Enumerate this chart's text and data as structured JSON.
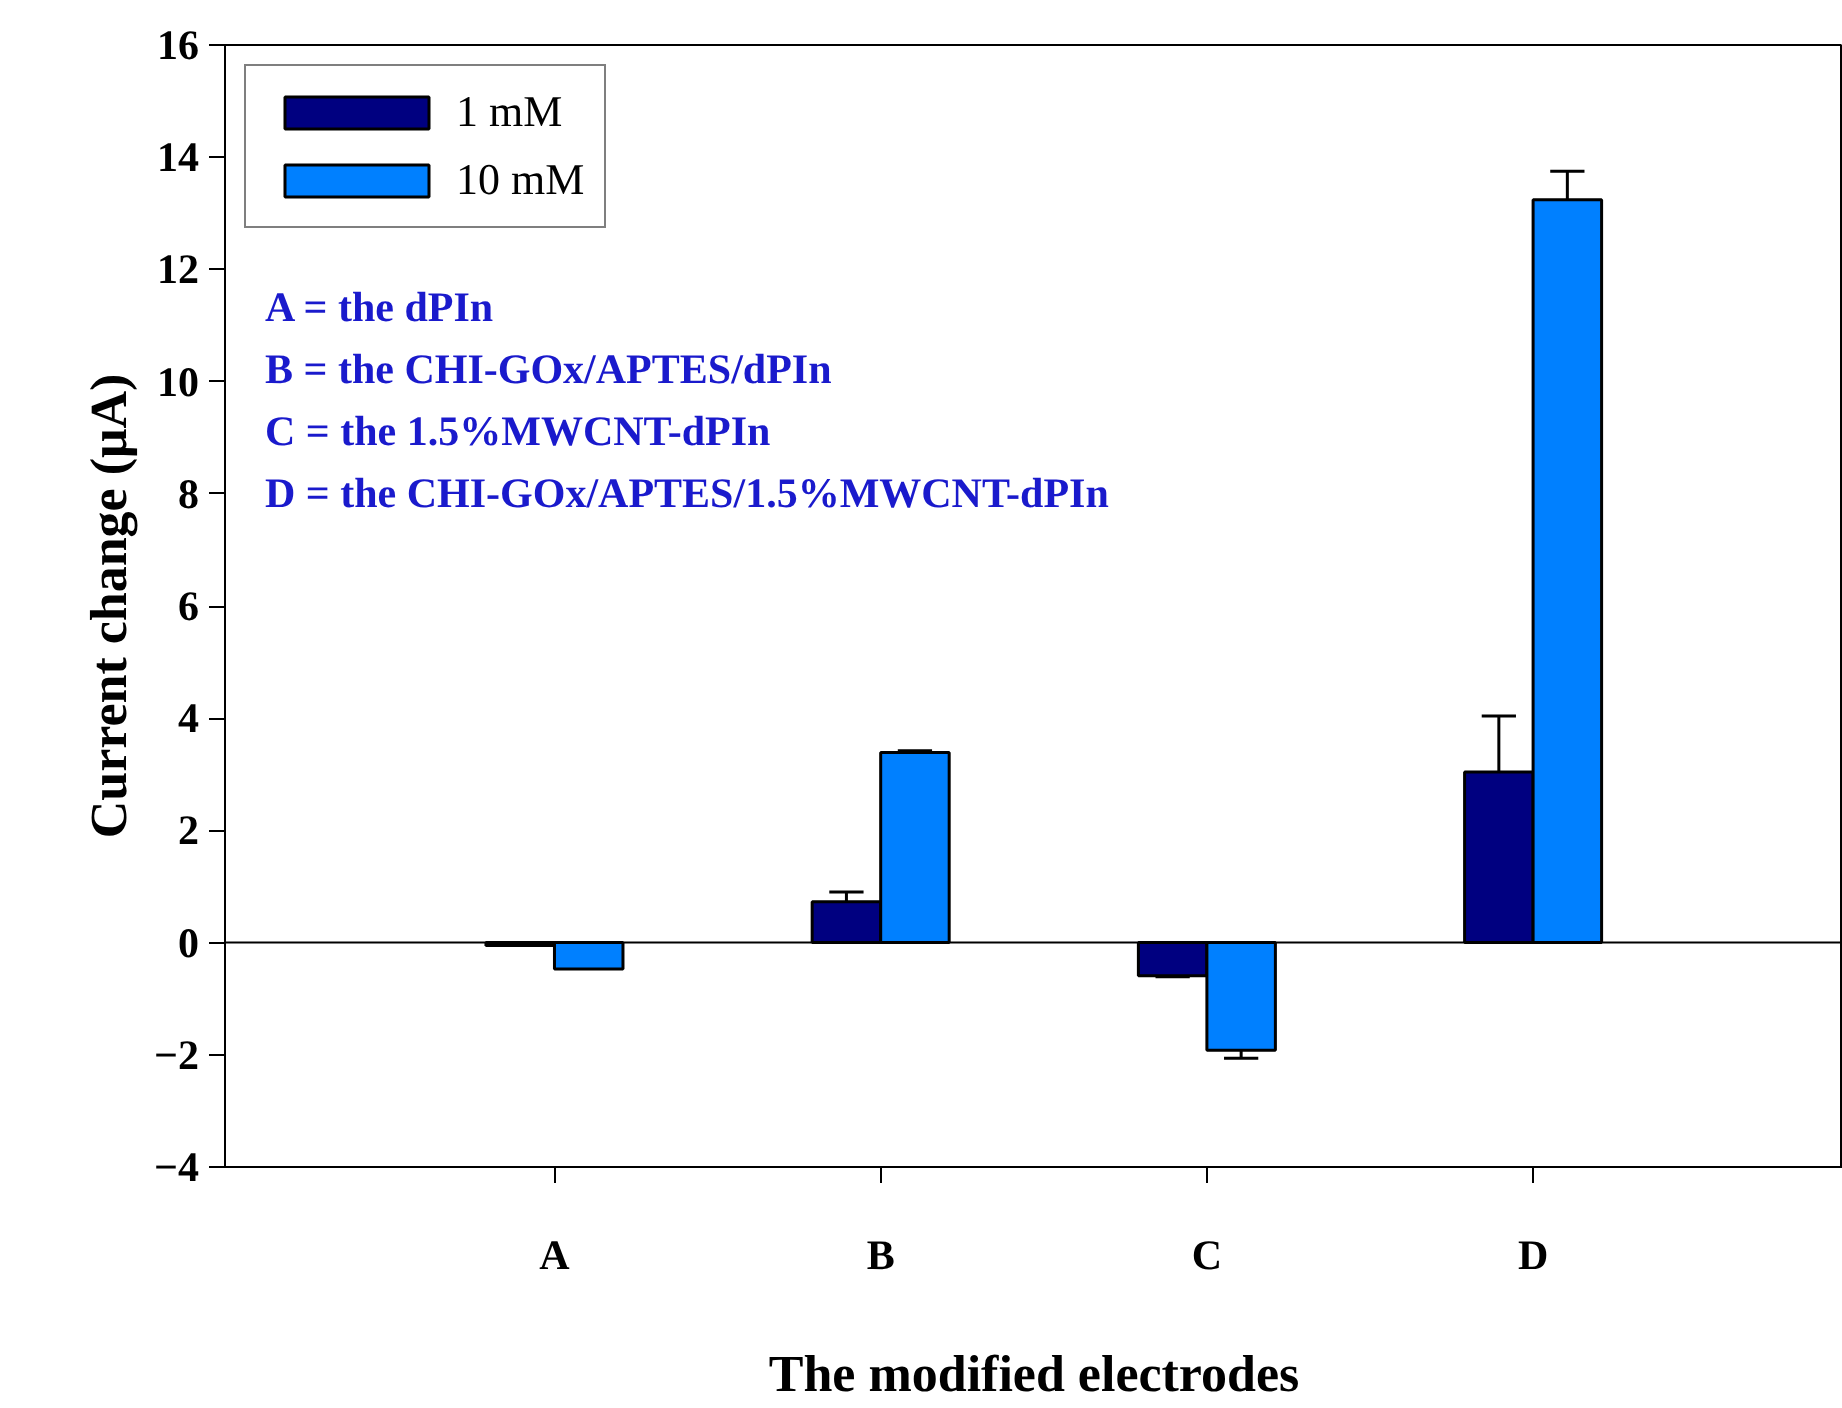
{
  "chart_data": {
    "type": "bar",
    "xlabel": "The modified electrodes",
    "ylabel": "Current change (μA)",
    "categories": [
      "A",
      "B",
      "C",
      "D"
    ],
    "series": [
      {
        "name": "1 mM",
        "color": "#000080",
        "values": [
          -0.05,
          0.73,
          -0.59,
          3.04
        ],
        "errors": [
          null,
          [
            0.73,
            0.9
          ],
          [
            -0.61,
            -0.59
          ],
          [
            3.04,
            4.04
          ]
        ]
      },
      {
        "name": "10 mM",
        "color": "#0080ff",
        "values": [
          -0.47,
          3.39,
          -1.92,
          13.24
        ],
        "errors": [
          null,
          [
            3.39,
            3.42
          ],
          [
            -2.06,
            -1.92
          ],
          [
            13.24,
            13.75
          ]
        ]
      }
    ],
    "ylim": [
      -4,
      16
    ],
    "yticks": [
      -4,
      -2,
      0,
      2,
      4,
      6,
      8,
      10,
      12,
      14,
      16
    ],
    "ref_lines": [
      {
        "axis": "y",
        "value": 0
      }
    ],
    "annotations": [
      "A = the dPIn",
      "B = the CHI-GOx/APTES/dPIn",
      "C = the 1.5%MWCNT-dPIn",
      "D = the CHI-GOx/APTES/1.5%MWCNT-dPIn"
    ],
    "legend": "top left",
    "grid": false
  }
}
